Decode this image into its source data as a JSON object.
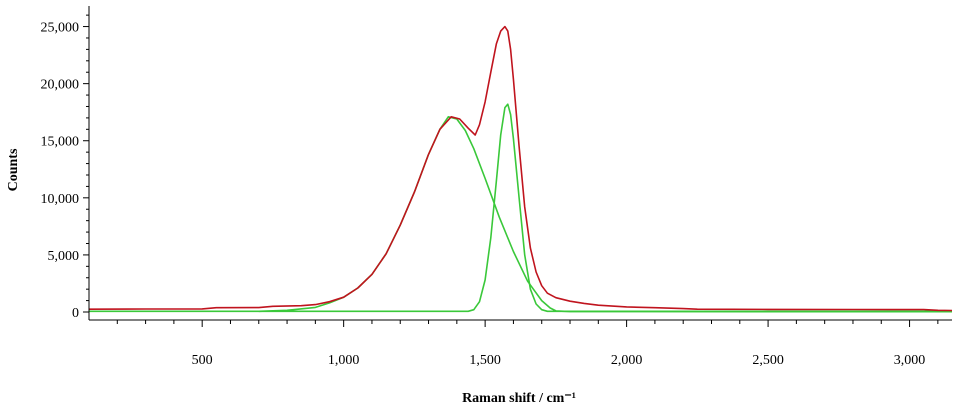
{
  "chart_data": {
    "type": "line",
    "title": "",
    "xlabel": "Raman shift / cm⁻¹",
    "ylabel": "Counts",
    "xlim": [
      100,
      3150
    ],
    "ylim": [
      -700,
      26800
    ],
    "xticks": [
      500,
      1000,
      1500,
      2000,
      2500,
      3000
    ],
    "xtick_labels": [
      "500",
      "1,000",
      "1,500",
      "2,000",
      "2,500",
      "3,000"
    ],
    "yticks": [
      0,
      5000,
      10000,
      15000,
      20000,
      25000
    ],
    "ytick_labels": [
      "0",
      "5,000",
      "10,000",
      "15,000",
      "20,000",
      "25,000"
    ],
    "grid": false,
    "legend": "none",
    "colors": {
      "measured": "#c0141e",
      "fit": "#3ac83a",
      "axis": "#000000"
    },
    "series": [
      {
        "role": "measured spectrum",
        "color": "#c0141e",
        "x": [
          100,
          300,
          500,
          550,
          700,
          750,
          850,
          900,
          950,
          1000,
          1050,
          1100,
          1150,
          1200,
          1250,
          1300,
          1340,
          1380,
          1410,
          1440,
          1465,
          1480,
          1500,
          1520,
          1540,
          1555,
          1570,
          1580,
          1590,
          1600,
          1620,
          1640,
          1660,
          1680,
          1700,
          1720,
          1750,
          1800,
          1850,
          1900,
          2000,
          2100,
          2200,
          2250,
          2500,
          2800,
          3050,
          3100,
          3150
        ],
        "y": [
          250,
          260,
          270,
          380,
          390,
          500,
          550,
          650,
          900,
          1300,
          2100,
          3300,
          5100,
          7600,
          10500,
          13800,
          16000,
          17100,
          16900,
          16100,
          15500,
          16400,
          18400,
          21000,
          23500,
          24600,
          25000,
          24600,
          23000,
          20400,
          14500,
          9200,
          5600,
          3500,
          2300,
          1650,
          1250,
          950,
          750,
          600,
          450,
          380,
          300,
          250,
          230,
          220,
          210,
          150,
          130
        ]
      },
      {
        "role": "fitted band ~1370 cm⁻¹",
        "color": "#3ac83a",
        "x": [
          700,
          800,
          900,
          950,
          1000,
          1050,
          1100,
          1150,
          1200,
          1250,
          1300,
          1340,
          1370,
          1400,
          1430,
          1460,
          1500,
          1550,
          1600,
          1650,
          1700,
          1730,
          1750,
          1800,
          3150
        ],
        "y": [
          60,
          150,
          400,
          800,
          1300,
          2100,
          3300,
          5100,
          7600,
          10500,
          13800,
          16000,
          17100,
          16900,
          15900,
          14300,
          11700,
          8300,
          5300,
          2700,
          1000,
          350,
          100,
          40,
          30
        ],
        "style": "outline"
      },
      {
        "role": "fitted band ~1580 cm⁻¹",
        "color": "#3ac83a",
        "x": [
          100,
          1440,
          1460,
          1480,
          1500,
          1520,
          1540,
          1555,
          1570,
          1580,
          1590,
          1600,
          1620,
          1640,
          1660,
          1680,
          1700,
          1720,
          3150
        ],
        "y": [
          60,
          60,
          200,
          900,
          2800,
          6500,
          11500,
          15500,
          17900,
          18200,
          17300,
          15200,
          10000,
          5000,
          2000,
          700,
          200,
          60,
          60
        ]
      }
    ]
  }
}
